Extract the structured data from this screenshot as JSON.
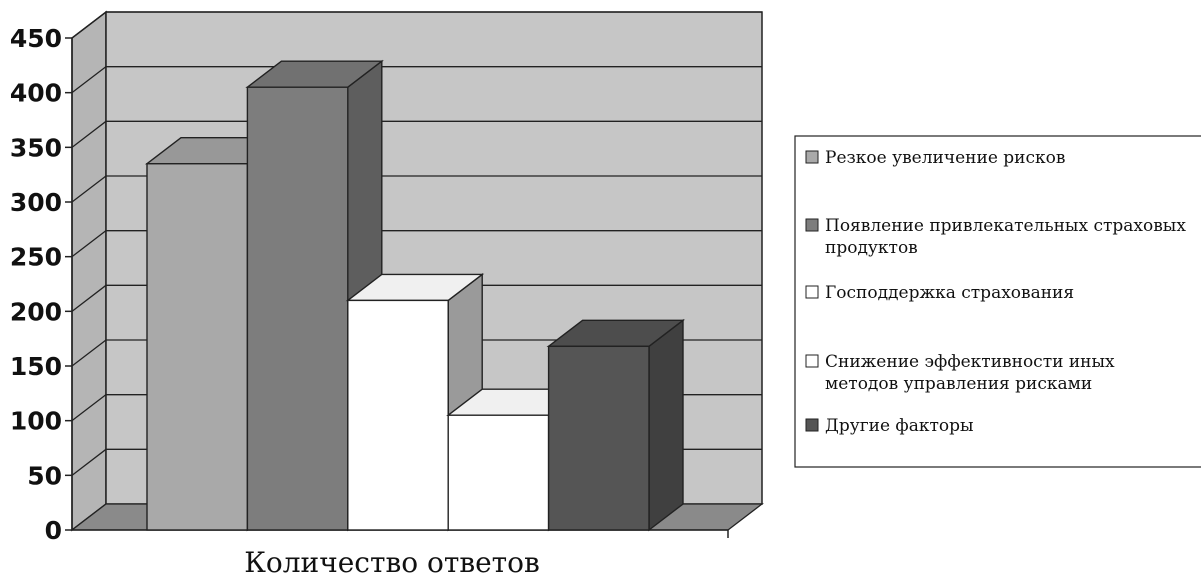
{
  "chart_data": {
    "type": "bar",
    "style": "3d-clustered",
    "categories": [
      "Количество ответов"
    ],
    "xlabel": "Количество ответов",
    "ylabel": "",
    "ylim": [
      0,
      450
    ],
    "yticks": [
      "0",
      "50",
      "100",
      "150",
      "200",
      "250",
      "300",
      "350",
      "400",
      "450"
    ],
    "grid": true,
    "legend_position": "right",
    "series": [
      {
        "name": "Резкое увеличение рисков",
        "value": 335,
        "color": "#a9a9a9"
      },
      {
        "name": "Появление привлекательных страховых продуктов",
        "value": 405,
        "color": "#7d7d7d"
      },
      {
        "name": "Господдержка страхования",
        "value": 210,
        "color": "#ffffff"
      },
      {
        "name": "Снижение эффективности иных методов управления рисками",
        "value": 105,
        "color": "#ffffff"
      },
      {
        "name": "Другие факторы",
        "value": 168,
        "color": "#555555"
      }
    ],
    "legend": [
      {
        "lines": [
          "Резкое увеличение рисков"
        ]
      },
      {
        "lines": [
          "Появление привлекательных страховых",
          "продуктов"
        ]
      },
      {
        "lines": [
          "Господдержка страхования"
        ]
      },
      {
        "lines": [
          "Снижение эффективности иных",
          "методов управления рисками"
        ]
      },
      {
        "lines": [
          "Другие факторы"
        ]
      }
    ]
  }
}
